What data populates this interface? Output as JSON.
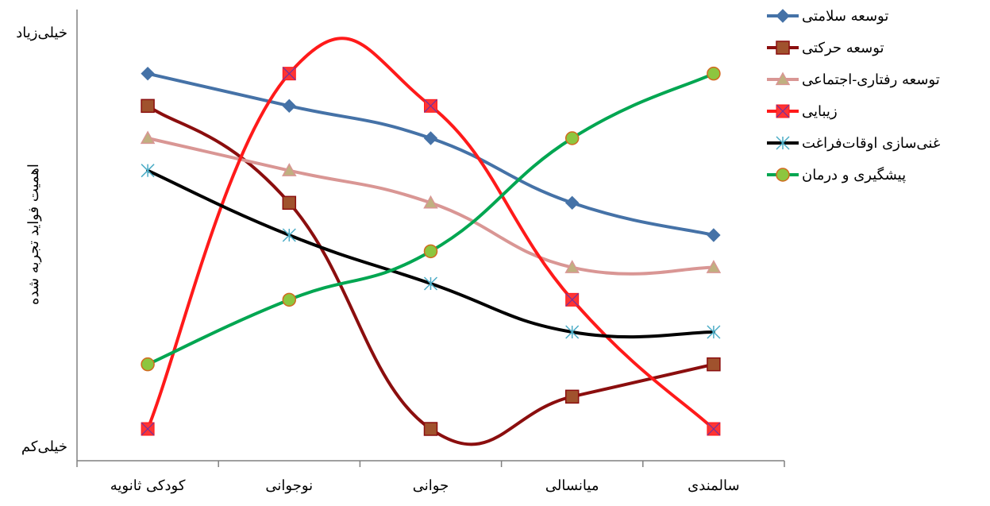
{
  "chart_data": {
    "type": "line",
    "categories": [
      "کودکی ثانویه",
      "نوجوانی",
      "جوانی",
      "میانسالی",
      "سالمندی"
    ],
    "ylabel": "اهمیت فواید تجربه شده",
    "y_tick_top": "خیلی‌زیاد",
    "y_tick_bottom": "خیلی‌کم",
    "ylim": [
      0,
      12
    ],
    "smooth": true,
    "grid": false,
    "legend_position": "top-right",
    "series": [
      {
        "name": "توسعه سلامتی",
        "color": "#4572a7",
        "marker": "diamond",
        "values": [
          11,
          10,
          9,
          7,
          6
        ]
      },
      {
        "name": "توسعه حرکتی",
        "color": "#8b0e0e",
        "marker": "square",
        "marker_fill": "#a0522d",
        "values": [
          10,
          7,
          0,
          1,
          2
        ]
      },
      {
        "name": "توسعه رفتاری-اجتماعی",
        "color": "#d99694",
        "marker": "triangle",
        "marker_fill": "#c0b080",
        "values": [
          9,
          8,
          7,
          5,
          5
        ]
      },
      {
        "name": "زیبایی",
        "color": "#ff1a1a",
        "marker": "x-square",
        "marker_fill": "#ff3333",
        "values": [
          0,
          11,
          10,
          4,
          0
        ]
      },
      {
        "name": "غنی‌سازی اوقات‌فراغت",
        "color": "#000000",
        "marker": "asterisk",
        "marker_fill": "#4bacc6",
        "values": [
          8,
          6,
          4.5,
          3,
          3
        ]
      },
      {
        "name": "پیشگیری و درمان",
        "color": "#00a651",
        "marker": "circle",
        "marker_fill": "#8dc63f",
        "values": [
          2,
          4,
          5.5,
          9,
          11
        ]
      }
    ]
  }
}
